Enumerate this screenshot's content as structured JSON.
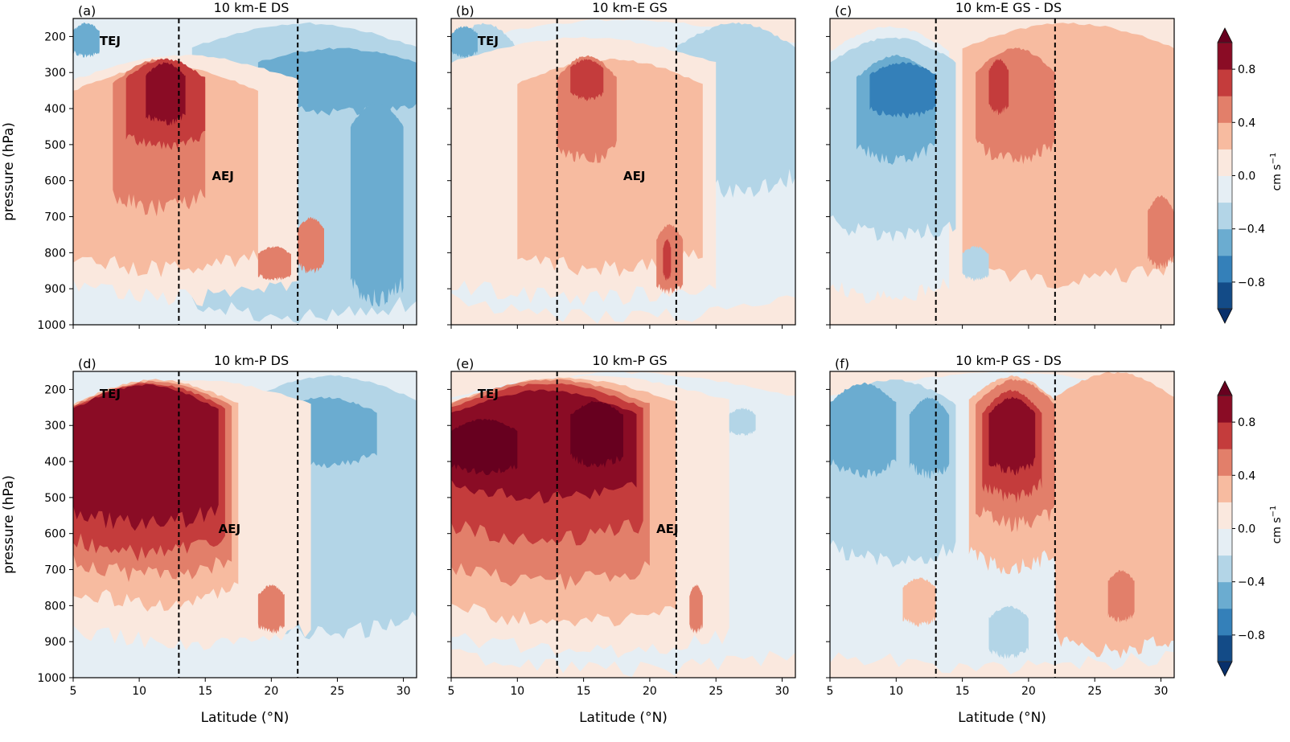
{
  "chart_data": {
    "type": "heatmap",
    "description": "Latitude-pressure cross sections (contour fill) of a wind-speed-like field with dashed reference latitudes",
    "xlabel": "Latitude (°N)",
    "ylabel": "pressure (hPa)",
    "xlim": [
      5,
      31
    ],
    "ylim": [
      1000,
      150
    ],
    "xticks": [
      5,
      10,
      15,
      20,
      25,
      30
    ],
    "yticks": [
      200,
      300,
      400,
      500,
      600,
      700,
      800,
      900,
      1000
    ],
    "reference_lines_lat": [
      13,
      22
    ],
    "colorbar": {
      "label": "cm s",
      "label_exponent": "−1",
      "levels": [
        -1.0,
        -0.8,
        -0.6,
        -0.4,
        -0.2,
        0.0,
        0.2,
        0.4,
        0.6,
        0.8,
        1.0
      ],
      "ticks": [
        0.8,
        0.4,
        0.0,
        -0.4,
        -0.8
      ],
      "tick_labels": [
        "0.8",
        "0.4",
        "0.0",
        "−0.4",
        "−0.8"
      ],
      "extend": "both",
      "colors": [
        "#08306b",
        "#134b87",
        "#3480b9",
        "#6bacd0",
        "#b3d5e7",
        "#e5eef4",
        "#fae8de",
        "#f7bba0",
        "#e27f6a",
        "#c43c3c",
        "#8a0c25",
        "#67001f"
      ]
    },
    "panels": [
      {
        "tag": "(a)",
        "title": "10 km-E DS",
        "annotations": [
          {
            "text": "TEJ",
            "lat": 7,
            "p": 210
          },
          {
            "text": "AEJ",
            "lat": 15.5,
            "p": 585
          }
        ],
        "blobs": [
          {
            "lat": [
              5,
              7
            ],
            "p": [
              160,
              260
            ],
            "v": -0.45
          },
          {
            "lat": [
              14,
              31
            ],
            "p": [
              160,
              1000
            ],
            "v": -0.25
          },
          {
            "lat": [
              19,
              31
            ],
            "p": [
              230,
              420
            ],
            "v": -0.45
          },
          {
            "lat": [
              26,
              30
            ],
            "p": [
              380,
              950
            ],
            "v": -0.45
          },
          {
            "lat": [
              5,
              22
            ],
            "p": [
              250,
              950
            ],
            "v": 0.1
          },
          {
            "lat": [
              5,
              19
            ],
            "p": [
              280,
              870
            ],
            "v": 0.3
          },
          {
            "lat": [
              8,
              15
            ],
            "p": [
              260,
              700
            ],
            "v": 0.5
          },
          {
            "lat": [
              9,
              15
            ],
            "p": [
              260,
              520
            ],
            "v": 0.7
          },
          {
            "lat": [
              10.5,
              13.5
            ],
            "p": [
              270,
              450
            ],
            "v": 0.9
          },
          {
            "lat": [
              22,
              24
            ],
            "p": [
              700,
              860
            ],
            "v": 0.5
          },
          {
            "lat": [
              19,
              21.5
            ],
            "p": [
              780,
              880
            ],
            "v": 0.5
          }
        ]
      },
      {
        "tag": "(b)",
        "title": "10 km-E GS",
        "annotations": [
          {
            "text": "TEJ",
            "lat": 7,
            "p": 210
          },
          {
            "text": "AEJ",
            "lat": 18,
            "p": 585
          }
        ],
        "blobs": [
          {
            "lat": [
              5,
              31
            ],
            "p": [
              150,
              1000
            ],
            "v": -0.1
          },
          {
            "lat": [
              5,
              10
            ],
            "p": [
              160,
              500
            ],
            "v": -0.25
          },
          {
            "lat": [
              5,
              7
            ],
            "p": [
              170,
              260
            ],
            "v": -0.45
          },
          {
            "lat": [
              22,
              31
            ],
            "p": [
              160,
              650
            ],
            "v": -0.25
          },
          {
            "lat": [
              5,
              25
            ],
            "p": [
              200,
              950
            ],
            "v": 0.1
          },
          {
            "lat": [
              10,
              24
            ],
            "p": [
              260,
              870
            ],
            "v": 0.3
          },
          {
            "lat": [
              13,
              17.5
            ],
            "p": [
              250,
              560
            ],
            "v": 0.5
          },
          {
            "lat": [
              14,
              16.5
            ],
            "p": [
              260,
              380
            ],
            "v": 0.7
          },
          {
            "lat": [
              20.5,
              22.5
            ],
            "p": [
              720,
              920
            ],
            "v": 0.5
          },
          {
            "lat": [
              21,
              21.6
            ],
            "p": [
              760,
              880
            ],
            "v": 0.7
          }
        ]
      },
      {
        "tag": "(c)",
        "title": "10 km-E GS - DS",
        "annotations": [],
        "blobs": [
          {
            "lat": [
              5,
              31
            ],
            "p": [
              150,
              1000
            ],
            "v": 0.1
          },
          {
            "lat": [
              5,
              14
            ],
            "p": [
              170,
              950
            ],
            "v": -0.1
          },
          {
            "lat": [
              5,
              14.5
            ],
            "p": [
              200,
              780
            ],
            "v": -0.25
          },
          {
            "lat": [
              7,
              13
            ],
            "p": [
              250,
              560
            ],
            "v": -0.45
          },
          {
            "lat": [
              8,
              13
            ],
            "p": [
              270,
              430
            ],
            "v": -0.65
          },
          {
            "lat": [
              15,
              31
            ],
            "p": [
              160,
              900
            ],
            "v": 0.3
          },
          {
            "lat": [
              16,
              22
            ],
            "p": [
              230,
              560
            ],
            "v": 0.5
          },
          {
            "lat": [
              17,
              18.5
            ],
            "p": [
              260,
              420
            ],
            "v": 0.7
          },
          {
            "lat": [
              29,
              31
            ],
            "p": [
              640,
              850
            ],
            "v": 0.5
          },
          {
            "lat": [
              15,
              17
            ],
            "p": [
              780,
              880
            ],
            "v": -0.25
          }
        ]
      },
      {
        "tag": "(d)",
        "title": "10 km-P DS",
        "annotations": [
          {
            "text": "TEJ",
            "lat": 7,
            "p": 210
          },
          {
            "text": "AEJ",
            "lat": 16,
            "p": 585
          }
        ],
        "blobs": [
          {
            "lat": [
              14,
              31
            ],
            "p": [
              150,
              1000
            ],
            "v": -0.1
          },
          {
            "lat": [
              18,
              31
            ],
            "p": [
              160,
              900
            ],
            "v": -0.25
          },
          {
            "lat": [
              20,
              28
            ],
            "p": [
              220,
              420
            ],
            "v": -0.45
          },
          {
            "lat": [
              5,
              23
            ],
            "p": [
              170,
              930
            ],
            "v": 0.1
          },
          {
            "lat": [
              5,
              17.5
            ],
            "p": [
              170,
              820
            ],
            "v": 0.3
          },
          {
            "lat": [
              5,
              17
            ],
            "p": [
              175,
              740
            ],
            "v": 0.5
          },
          {
            "lat": [
              5,
              16.5
            ],
            "p": [
              180,
              680
            ],
            "v": 0.7
          },
          {
            "lat": [
              5,
              16
            ],
            "p": [
              185,
              600
            ],
            "v": 0.9
          },
          {
            "lat": [
              19,
              21
            ],
            "p": [
              740,
              880
            ],
            "v": 0.5
          }
        ]
      },
      {
        "tag": "(e)",
        "title": "10 km-P GS",
        "annotations": [
          {
            "text": "TEJ",
            "lat": 7,
            "p": 210
          },
          {
            "text": "AEJ",
            "lat": 20.5,
            "p": 585
          }
        ],
        "blobs": [
          {
            "lat": [
              5,
              31
            ],
            "p": [
              150,
              1000
            ],
            "v": -0.1
          },
          {
            "lat": [
              5,
              26
            ],
            "p": [
              160,
              950
            ],
            "v": 0.1
          },
          {
            "lat": [
              5,
              22
            ],
            "p": [
              165,
              870
            ],
            "v": 0.3
          },
          {
            "lat": [
              5,
              20
            ],
            "p": [
              170,
              760
            ],
            "v": 0.5
          },
          {
            "lat": [
              5,
              19.5
            ],
            "p": [
              180,
              640
            ],
            "v": 0.7
          },
          {
            "lat": [
              5,
              19
            ],
            "p": [
              200,
              520
            ],
            "v": 0.9
          },
          {
            "lat": [
              5,
              10
            ],
            "p": [
              280,
              440
            ],
            "v": 1.0
          },
          {
            "lat": [
              14,
              18
            ],
            "p": [
              230,
              420
            ],
            "v": 1.0
          },
          {
            "lat": [
              23,
              24
            ],
            "p": [
              740,
              880
            ],
            "v": 0.5
          },
          {
            "lat": [
              26,
              28
            ],
            "p": [
              250,
              330
            ],
            "v": -0.25
          }
        ]
      },
      {
        "tag": "(f)",
        "title": "10 km-P GS - DS",
        "annotations": [],
        "blobs": [
          {
            "lat": [
              5,
              31
            ],
            "p": [
              150,
              1000
            ],
            "v": -0.1
          },
          {
            "lat": [
              5,
              14.5
            ],
            "p": [
              170,
              700
            ],
            "v": -0.25
          },
          {
            "lat": [
              5,
              10
            ],
            "p": [
              180,
              450
            ],
            "v": -0.45
          },
          {
            "lat": [
              11,
              14
            ],
            "p": [
              220,
              450
            ],
            "v": -0.45
          },
          {
            "lat": [
              22,
              31
            ],
            "p": [
              150,
              950
            ],
            "v": 0.3
          },
          {
            "lat": [
              15.5,
              22
            ],
            "p": [
              160,
              720
            ],
            "v": 0.3
          },
          {
            "lat": [
              16,
              22
            ],
            "p": [
              170,
              600
            ],
            "v": 0.5
          },
          {
            "lat": [
              16.5,
              21
            ],
            "p": [
              200,
              520
            ],
            "v": 0.7
          },
          {
            "lat": [
              17,
              20.5
            ],
            "p": [
              220,
              440
            ],
            "v": 0.9
          },
          {
            "lat": [
              10.5,
              13
            ],
            "p": [
              720,
              860
            ],
            "v": 0.3
          },
          {
            "lat": [
              26,
              28
            ],
            "p": [
              700,
              850
            ],
            "v": 0.5
          },
          {
            "lat": [
              17,
              20
            ],
            "p": [
              800,
              950
            ],
            "v": -0.25
          }
        ]
      }
    ]
  }
}
